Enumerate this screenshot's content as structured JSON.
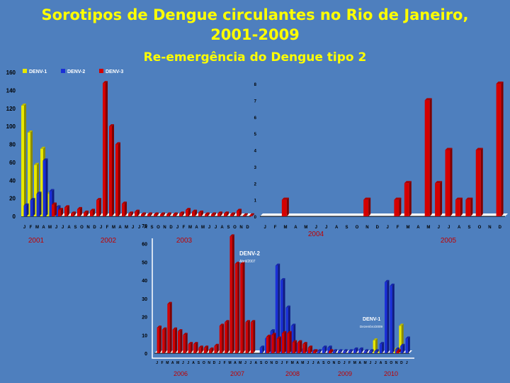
{
  "title_line1": "Sorotipos de Dengue circulantes no Rio de Janeiro,",
  "title_line2": "2001-2009",
  "subtitle": "Re-emergência do Dengue tipo 2",
  "colors": {
    "denv1": "#e8e800",
    "denv2": "#1a2fd6",
    "denv3": "#d40000",
    "bg": "#4e7fbe",
    "year_label": "#c00000",
    "frame": "#ffffff"
  },
  "chart_data": [
    {
      "type": "bar",
      "id": "left_panel",
      "ylim": [
        0,
        160
      ],
      "yticks": [
        "0",
        "20",
        "40",
        "60",
        "80",
        "100",
        "120",
        "140",
        "160"
      ],
      "legend": [
        "DENV-1",
        "DENV-2",
        "DENV-3"
      ],
      "legend_position": "top-left",
      "month_labels": [
        "J",
        "F",
        "M",
        "A",
        "M",
        "J",
        "J",
        "A",
        "S",
        "O",
        "N",
        "D",
        "J",
        "F",
        "M",
        "A",
        "M",
        "J",
        "J",
        "A",
        "S",
        "O",
        "N",
        "D",
        "J",
        "F",
        "M",
        "A",
        "M",
        "J",
        "J",
        "A",
        "S",
        "O",
        "N",
        "D"
      ],
      "year_labels": [
        "2001",
        "2002",
        "2003"
      ],
      "series": [
        {
          "name": "DENV-1",
          "values": [
            123,
            93,
            57,
            75,
            25,
            10,
            0,
            0,
            0,
            0,
            0,
            0,
            0,
            0,
            0,
            0,
            0,
            0,
            0,
            0,
            0,
            0,
            0,
            0,
            0,
            0,
            0,
            0,
            0,
            0,
            0,
            0,
            0,
            0,
            0,
            0
          ]
        },
        {
          "name": "DENV-2",
          "values": [
            12,
            18,
            25,
            62,
            28,
            10,
            0,
            0,
            0,
            0,
            0,
            0,
            0,
            0,
            0,
            0,
            0,
            0,
            0,
            0,
            0,
            0,
            0,
            0,
            0,
            0,
            0,
            0,
            0,
            0,
            0,
            0,
            0,
            0,
            0,
            0
          ]
        },
        {
          "name": "DENV-3",
          "values": [
            0,
            0,
            0,
            0,
            13,
            7,
            10,
            3,
            8,
            4,
            6,
            18,
            148,
            100,
            80,
            14,
            3,
            5,
            2,
            2,
            2,
            2,
            2,
            2,
            3,
            7,
            5,
            4,
            2,
            2,
            3,
            3,
            2,
            6,
            1,
            1
          ]
        }
      ]
    },
    {
      "type": "bar",
      "id": "right_panel",
      "ylim": [
        0,
        8
      ],
      "yticks": [
        "0",
        "1",
        "2",
        "3",
        "4",
        "5",
        "6",
        "7",
        "8"
      ],
      "month_labels": [
        "J",
        "F",
        "M",
        "A",
        "M",
        "J",
        "J",
        "A",
        "S",
        "O",
        "N",
        "D",
        "J",
        "F",
        "M",
        "A",
        "M",
        "J",
        "J",
        "A",
        "S",
        "O",
        "N",
        "D"
      ],
      "year_labels": [
        "2004",
        "2005"
      ],
      "series": [
        {
          "name": "DENV-3",
          "values": [
            0,
            0,
            1,
            0,
            0,
            0,
            0,
            0,
            0,
            0,
            1,
            0,
            0,
            1,
            2,
            0,
            7,
            2,
            4,
            1,
            1,
            4,
            0,
            8
          ]
        }
      ]
    },
    {
      "type": "bar",
      "id": "bottom_panel",
      "ylim": [
        0,
        70
      ],
      "yticks": [
        "0",
        "10",
        "20",
        "30",
        "40",
        "50",
        "60",
        "70"
      ],
      "month_labels": [
        "J",
        "F",
        "M",
        "A",
        "M",
        "J",
        "J",
        "A",
        "S",
        "O",
        "N",
        "D",
        "J",
        "F",
        "M",
        "A",
        "M",
        "J",
        "J",
        "A",
        "S",
        "O",
        "N",
        "D",
        "J",
        "F",
        "M",
        "A",
        "M",
        "J",
        "J",
        "A",
        "S",
        "O",
        "N",
        "D",
        "J",
        "F",
        "M",
        "A",
        "M",
        "J",
        "J",
        "A",
        "S",
        "O",
        "N",
        "D",
        "J"
      ],
      "year_labels": [
        "2006",
        "2007",
        "2008",
        "2009",
        "2010"
      ],
      "annotations": [
        {
          "label": "DENV-2",
          "note": "Abril/2007"
        },
        {
          "label": "DENV-1",
          "note": "Dezembro/2009"
        }
      ],
      "series": [
        {
          "name": "DENV-1",
          "values": [
            0,
            0,
            0,
            0,
            0,
            0,
            0,
            0,
            0,
            0,
            0,
            0,
            0,
            0,
            0,
            0,
            0,
            0,
            0,
            0,
            0,
            0,
            0,
            0,
            0,
            0,
            0,
            0,
            0,
            0,
            0,
            0,
            0,
            0,
            0,
            0,
            0,
            0,
            0,
            0,
            0,
            0,
            7,
            1,
            0,
            0,
            2,
            15,
            0
          ]
        },
        {
          "name": "DENV-2",
          "values": [
            0,
            0,
            0,
            0,
            0,
            0,
            0,
            0,
            0,
            0,
            0,
            0,
            0,
            0,
            0,
            0,
            0,
            0,
            0,
            0,
            3,
            8,
            12,
            48,
            40,
            25,
            15,
            5,
            2,
            1,
            1,
            1,
            3,
            3,
            1,
            1,
            1,
            1,
            2,
            2,
            1,
            1,
            1,
            5,
            39,
            37,
            2,
            4,
            8
          ]
        },
        {
          "name": "DENV-3",
          "values": [
            14,
            13,
            27,
            13,
            12,
            10,
            5,
            5,
            3,
            3,
            2,
            4,
            15,
            17,
            64,
            49,
            49,
            17,
            17,
            0,
            0,
            9,
            10,
            8,
            11,
            11,
            6,
            6,
            5,
            3,
            1,
            0,
            0,
            1,
            0,
            0,
            0,
            0,
            0,
            0,
            0,
            0,
            0,
            0,
            0,
            0,
            1,
            0,
            0
          ]
        }
      ]
    }
  ]
}
